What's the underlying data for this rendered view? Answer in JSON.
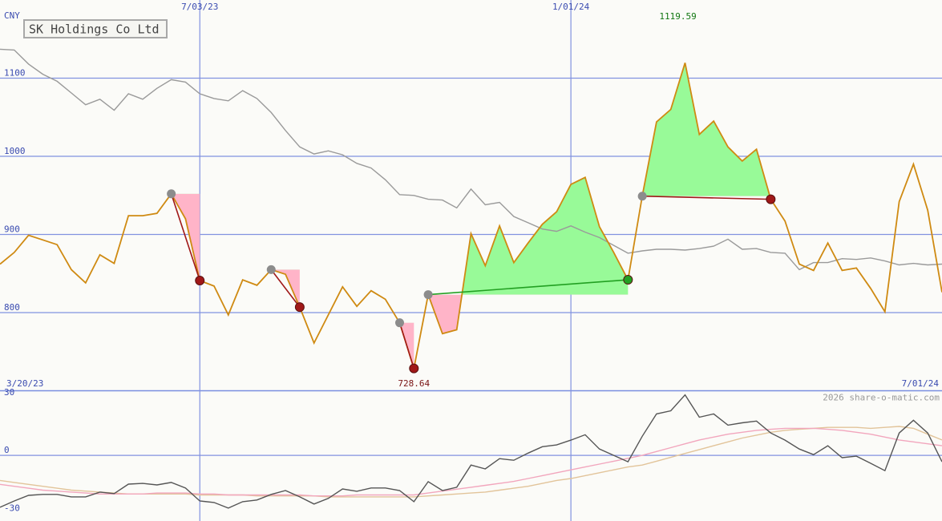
{
  "chart_data": [
    {
      "type": "line",
      "title": "SK Holdings Co Ltd",
      "y_label": "CNY",
      "categories": [
        "3/20/23",
        null,
        null,
        null,
        null,
        null,
        null,
        null,
        null,
        null,
        null,
        null,
        null,
        null,
        "7/03/23",
        null,
        null,
        null,
        null,
        null,
        null,
        null,
        null,
        null,
        null,
        null,
        null,
        null,
        null,
        null,
        null,
        null,
        null,
        null,
        null,
        null,
        null,
        null,
        null,
        null,
        "1/01/24",
        null,
        null,
        null,
        null,
        null,
        null,
        null,
        null,
        null,
        null,
        null,
        null,
        null,
        null,
        null,
        null,
        null,
        null,
        null,
        null,
        null,
        null,
        null,
        null,
        null,
        "7/01/24"
      ],
      "series": [
        {
          "color": "#cf8a12",
          "label_extremes": true,
          "values": [
            862,
            877,
            899,
            893,
            887,
            855,
            838,
            874,
            863,
            924,
            924,
            927,
            952,
            920,
            841,
            834,
            797,
            842,
            835,
            855,
            849,
            807,
            761,
            797,
            833,
            808,
            828,
            817,
            787,
            728.64,
            823,
            773,
            778,
            901,
            860,
            911,
            864,
            889,
            913,
            929,
            964,
            973,
            910,
            877,
            842,
            949,
            1044,
            1060,
            1119.59,
            1028,
            1045,
            1012,
            994,
            1009,
            945,
            917,
            862,
            854,
            889,
            854,
            857,
            831,
            801,
            942,
            990,
            931,
            826
          ]
        },
        {
          "color": "#9a9a9a",
          "values": [
            1137,
            1136,
            1118,
            1105,
            1096,
            1081,
            1066,
            1073,
            1059,
            1080,
            1073,
            1087,
            1098,
            1095,
            1080,
            1074,
            1071,
            1084,
            1074,
            1056,
            1033,
            1012,
            1003,
            1007,
            1002,
            991,
            985,
            970,
            951,
            950,
            945,
            944,
            934,
            958,
            938,
            941,
            923,
            915,
            907,
            904,
            911,
            903,
            896,
            886,
            876,
            879,
            881,
            881,
            880,
            882,
            885,
            894,
            881,
            882,
            877,
            876,
            855,
            864,
            864,
            869,
            868,
            870,
            866,
            861,
            863,
            861,
            862
          ]
        }
      ],
      "trades": [
        {
          "entry": 12,
          "exit": 14,
          "result": "loss"
        },
        {
          "entry": 19,
          "exit": 21,
          "result": "loss"
        },
        {
          "entry": 28,
          "exit": 29,
          "result": "loss"
        },
        {
          "entry": 30,
          "exit": 44,
          "result": "win"
        },
        {
          "entry": 45,
          "exit": 54,
          "result": "loss"
        }
      ],
      "result_colors": {
        "win": "#22a022",
        "loss": "#a01818"
      },
      "shade_colors": {
        "above": "#98fa98",
        "below": "#ffb4c8"
      },
      "ylim": [
        700,
        1200
      ],
      "yticks": [
        800,
        900,
        1000,
        1100
      ],
      "grid": true
    },
    {
      "type": "line",
      "series": [
        {
          "color": "#555555",
          "values": [
            -26.9,
            -23.6,
            -20.7,
            -20.2,
            -20.2,
            -21.5,
            -21.5,
            -19,
            -19.8,
            -14.9,
            -14.5,
            -15.3,
            -14,
            -16.9,
            -23.6,
            -24.4,
            -27.3,
            -24,
            -23.1,
            -20.2,
            -18.2,
            -21.5,
            -25.2,
            -22.3,
            -17.4,
            -18.6,
            -16.9,
            -16.9,
            -18.2,
            -24,
            -13.6,
            -18.2,
            -16.5,
            -5,
            -7,
            -1.7,
            -2.5,
            1.2,
            4.5,
            5.4,
            7.9,
            10.7,
            3.3,
            0,
            -3.3,
            9.9,
            21.5,
            23.1,
            31.4,
            19.8,
            21.5,
            15.7,
            16.9,
            17.8,
            11.6,
            7.9,
            3.3,
            0.4,
            5,
            -1.2,
            -0.4,
            -4.1,
            -7.9,
            11.6,
            18.2,
            11.6,
            -3.3
          ]
        },
        {
          "color": "#f2a6bd",
          "values": [
            -15,
            -16,
            -17,
            -18,
            -18.5,
            -19,
            -19.5,
            -20,
            -20,
            -20,
            -20,
            -19.5,
            -19.5,
            -19.5,
            -20,
            -20,
            -20.5,
            -20.5,
            -20.5,
            -20.5,
            -20.5,
            -20.5,
            -21,
            -21,
            -21,
            -20.5,
            -20.5,
            -20.5,
            -20.5,
            -20.5,
            -19.5,
            -18.5,
            -17.5,
            -16.5,
            -15.5,
            -14.5,
            -13.5,
            -12,
            -10.5,
            -9,
            -7.5,
            -6,
            -4.5,
            -3,
            -1.5,
            0,
            2,
            4,
            6,
            8,
            9.5,
            11,
            12,
            13,
            13.5,
            14,
            14,
            14,
            13.5,
            13,
            12,
            11,
            9.5,
            8,
            7,
            6,
            5
          ]
        },
        {
          "color": "#e2c49a",
          "values": [
            -13,
            -14,
            -15,
            -16,
            -17,
            -18,
            -18.5,
            -19,
            -19.5,
            -20,
            -20,
            -20,
            -20,
            -20,
            -20.5,
            -20.5,
            -20.5,
            -20.5,
            -21,
            -21,
            -21,
            -21,
            -21,
            -21.5,
            -21.5,
            -21.5,
            -21.5,
            -21.5,
            -21.5,
            -21.5,
            -21,
            -20.5,
            -20,
            -19.5,
            -19,
            -18,
            -17,
            -16,
            -14.5,
            -13,
            -12,
            -10.5,
            -9,
            -7.5,
            -6,
            -5,
            -3,
            -1,
            1,
            3,
            5,
            7,
            9,
            10.5,
            12,
            13,
            13.5,
            14,
            14.5,
            14.5,
            14.5,
            14,
            14.5,
            15,
            14,
            11,
            8
          ]
        }
      ],
      "ylim": [
        -34,
        33.5
      ],
      "yticks": [
        -30,
        0,
        30
      ],
      "zero_line": true,
      "watermark": "2026 share-o-matic.com"
    }
  ]
}
